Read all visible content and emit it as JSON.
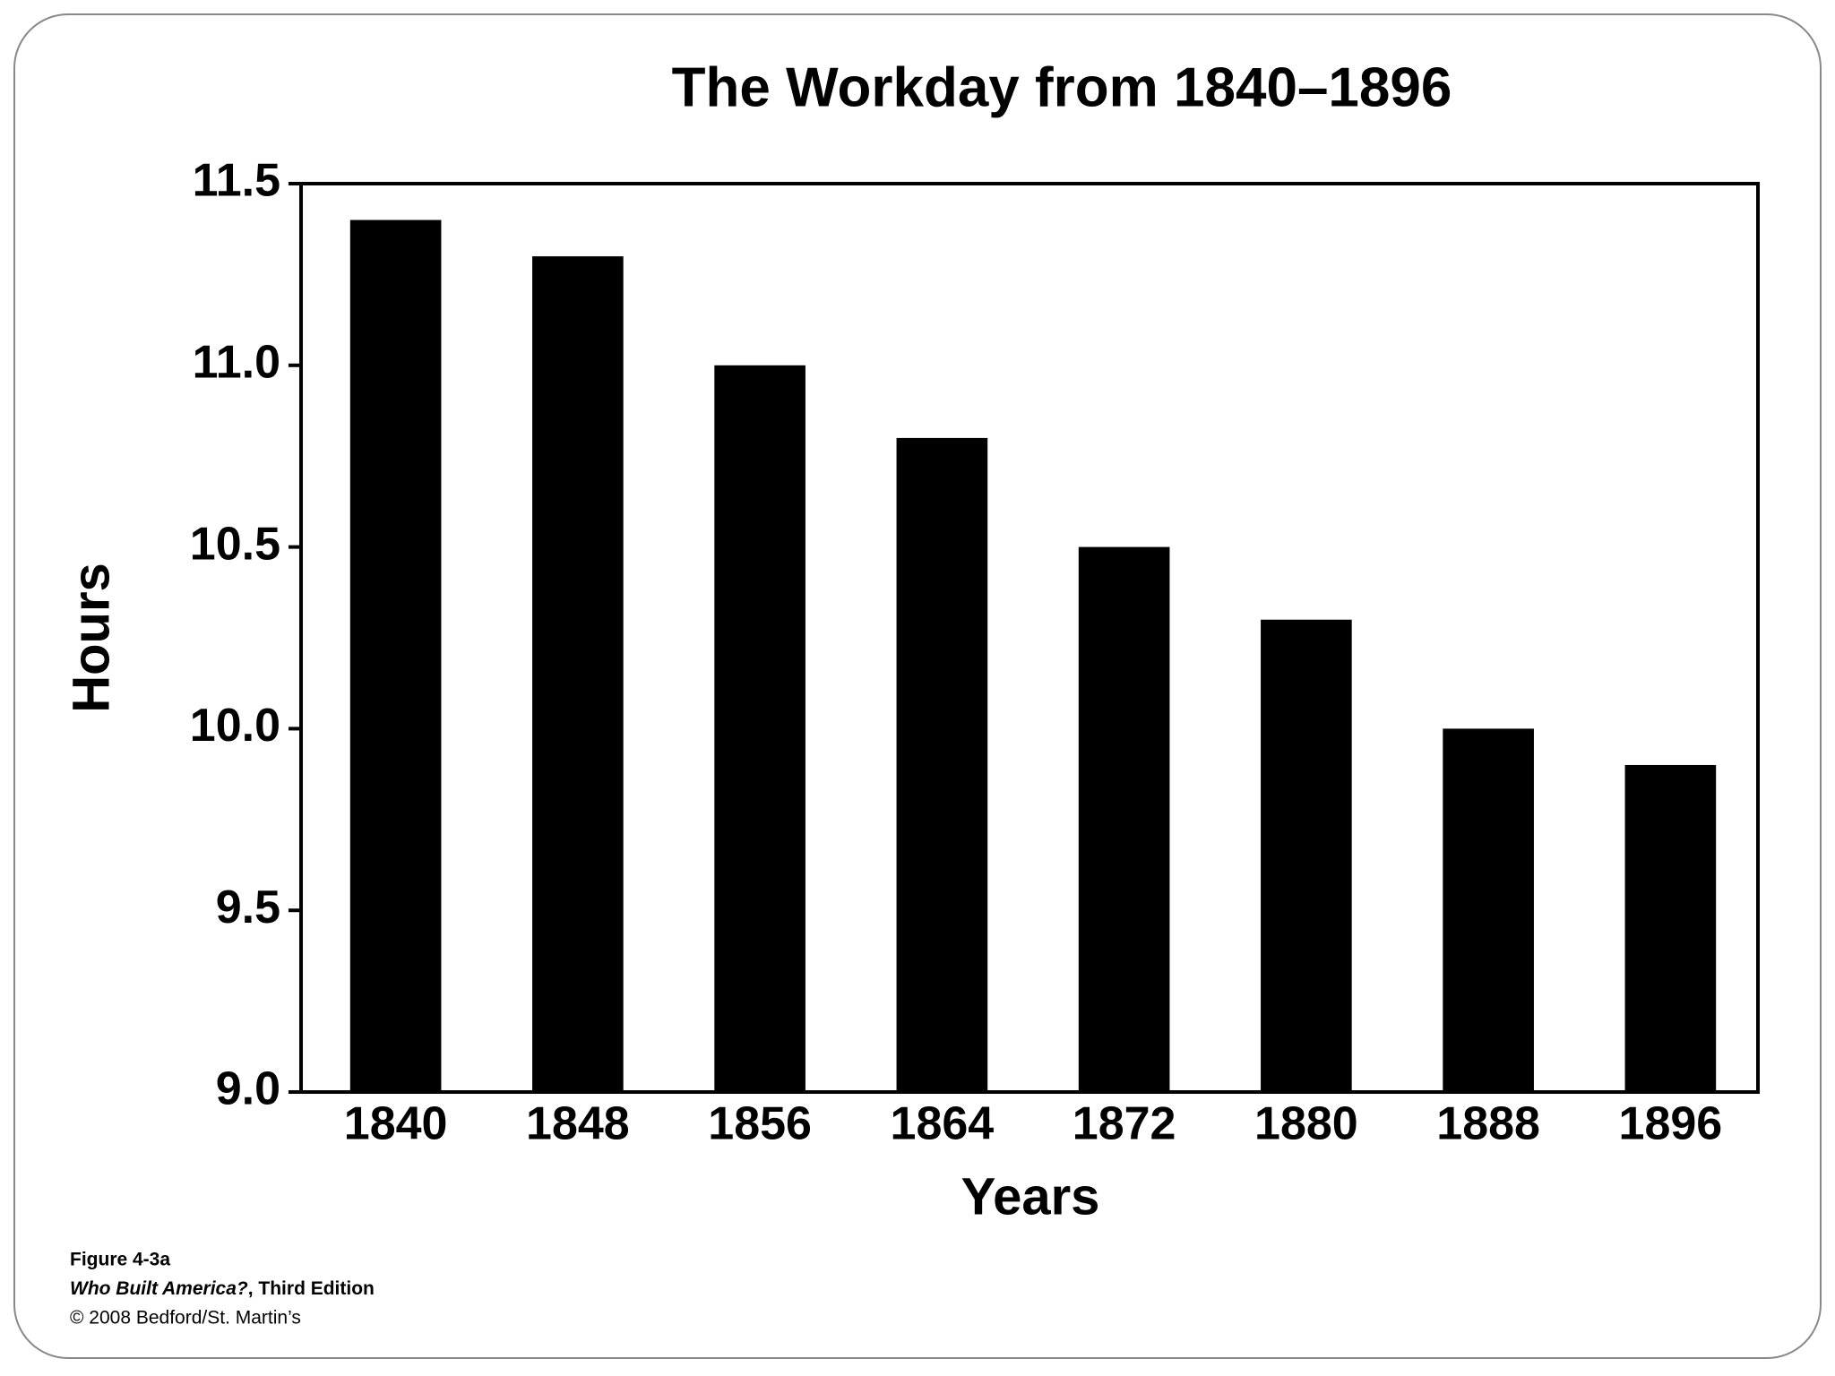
{
  "chart_data": {
    "type": "bar",
    "title": "The Workday from 1840–1896",
    "x_label": "Years",
    "y_label": "Hours",
    "categories": [
      "1840",
      "1848",
      "1856",
      "1864",
      "1872",
      "1880",
      "1888",
      "1896"
    ],
    "values": [
      11.4,
      11.3,
      11.0,
      10.8,
      10.5,
      10.3,
      10.0,
      9.9
    ],
    "color": "#000000",
    "ylim": [
      9,
      11.5
    ],
    "yticks": [
      {
        "value": 9,
        "label": "9.0"
      },
      9.5,
      {
        "value": 10,
        "label": "10.0"
      },
      10.5,
      {
        "value": 11,
        "label": "11.0"
      },
      11.5
    ],
    "grid": false,
    "figure_label": "Figure 4-3a",
    "source_title": "Who Built America?",
    "source_edition": ", Third Edition",
    "copyright": "© 2008 Bedford/St. Martin’s"
  }
}
